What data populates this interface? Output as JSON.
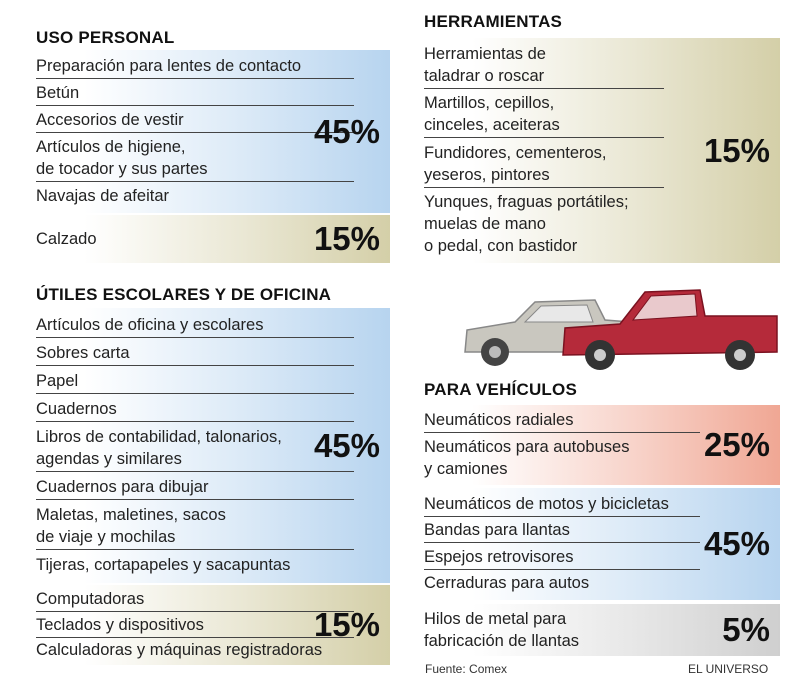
{
  "sections": [
    {
      "title": "USO PERSONAL",
      "groups": [
        {
          "items": [
            "Preparación para lentes de contacto",
            "Betún",
            "Accesorios de vestir",
            "Artículos de higiene,\nde tocador y sus partes",
            "Navajas de afeitar"
          ],
          "percent": "45%",
          "color": "#b7d4ef"
        },
        {
          "items": [
            "Calzado"
          ],
          "percent": "15%",
          "color": "#d4cfa8"
        }
      ]
    },
    {
      "title": "ÚTILES ESCOLARES Y DE OFICINA",
      "groups": [
        {
          "items": [
            "Artículos de oficina y escolares",
            "Sobres carta",
            "Papel",
            "Cuadernos",
            "Libros de contabilidad, talonarios,\nagendas y similares",
            "Cuadernos para dibujar",
            "Maletas, maletines, sacos\nde viaje y mochilas",
            "Tijeras, cortapapeles y sacapuntas"
          ],
          "percent": "45%",
          "color": "#b7d4ef"
        },
        {
          "items": [
            "Computadoras",
            "Teclados y dispositivos",
            "Calculadoras y máquinas registradoras"
          ],
          "percent": "15%",
          "color": "#d4cfa8"
        }
      ]
    },
    {
      "title": "HERRAMIENTAS",
      "groups": [
        {
          "items": [
            "Herramientas de\ntaladrar o roscar",
            "Martillos, cepillos,\ncinceles, aceiteras",
            "Fundidores, cementeros,\nyeseros, pintores",
            "Yunques, fraguas portátiles;\nmuelas de mano\no pedal, con bastidor"
          ],
          "percent": "15%",
          "color": "#d4cfa8"
        }
      ]
    },
    {
      "title": "PARA VEHÍCULOS",
      "groups": [
        {
          "items": [
            "Neumáticos radiales",
            "Neumáticos para autobuses\ny camiones"
          ],
          "percent": "25%",
          "color": "#f0a794"
        },
        {
          "items": [
            "Neumáticos de motos y bicicletas",
            "Bandas para llantas",
            "Espejos retrovisores",
            "Cerraduras para autos"
          ],
          "percent": "45%",
          "color": "#b7d4ef"
        },
        {
          "items": [
            "Hilos de metal para\nfabricación de llantas"
          ],
          "percent": "5%",
          "color": "#cfcfcf"
        }
      ]
    }
  ],
  "footer": {
    "source": "Fuente: Comex",
    "brand": "EL UNIVERSO"
  }
}
